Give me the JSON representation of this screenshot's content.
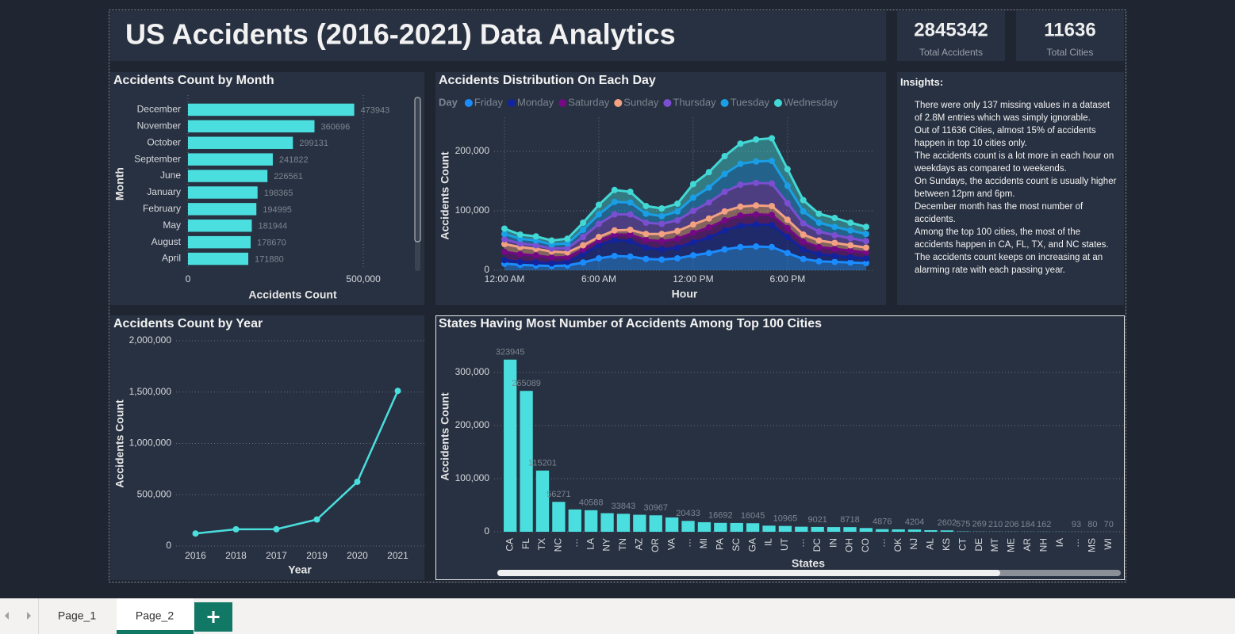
{
  "header": {
    "title": "US Accidents (2016-2021) Data Analytics"
  },
  "cards": [
    {
      "value": 2845342,
      "label": "Total Accidents"
    },
    {
      "value": 11636,
      "label": "Total Cities"
    }
  ],
  "insights": {
    "title": "Insights:",
    "items": [
      "There were only 137 missing values in a dataset of 2.8M entries which was simply ignorable.",
      "Out of 11636 Cities, almost 15% of accidents happen in top 10 cities only.",
      "The accidents count is a lot more in each hour on weekdays as compared to weekends.",
      "On Sundays, the accidents count is usually higher between 12pm and 6pm.",
      "December month has the most number of accidents.",
      "Among the top 100 cities, the most of the accidents happen in CA, FL, TX, and NC states.",
      "The accidents count keeps on increasing at an alarming rate with each passing year."
    ]
  },
  "chart_data": [
    {
      "type": "bar",
      "orientation": "horizontal",
      "title": "Accidents Count by Month",
      "x_label": "Accidents Count",
      "y_label": "Month",
      "categories": [
        "December",
        "November",
        "October",
        "September",
        "June",
        "January",
        "February",
        "May",
        "August",
        "April"
      ],
      "values": [
        473943,
        360696,
        299131,
        241822,
        226561,
        198365,
        194995,
        181944,
        178670,
        171880
      ],
      "color": "#4adede",
      "data_labels": true,
      "grid": true,
      "xlim": [
        0,
        640000
      ],
      "xticks": [
        0,
        {
          "value": 500000,
          "label": "500,000"
        }
      ]
    },
    {
      "type": "area",
      "stacked": true,
      "title": "Accidents Distribution On Each Day",
      "x_label": "Hour",
      "y_label": "Accidents Count",
      "legend_title": "Day",
      "x": [
        0,
        1,
        2,
        3,
        4,
        5,
        6,
        7,
        8,
        9,
        10,
        11,
        12,
        13,
        14,
        15,
        16,
        17,
        18,
        19,
        20,
        21,
        22,
        23
      ],
      "xlim": [
        0,
        23
      ],
      "xticks": [
        {
          "value": 0,
          "label": "12:00 AM"
        },
        {
          "value": 6,
          "label": "6:00 AM"
        },
        {
          "value": 12,
          "label": "12:00 PM"
        },
        {
          "value": 18,
          "label": "6:00 PM"
        }
      ],
      "ylim": [
        0,
        250000
      ],
      "yticks": [
        0,
        {
          "value": 100000,
          "label": "100,000"
        },
        {
          "value": 200000,
          "label": "200,000"
        }
      ],
      "grid": true,
      "series": [
        {
          "name": "Friday",
          "color": "#1a8cff",
          "values": [
            11000,
            9000,
            8000,
            7000,
            8000,
            13000,
            20000,
            24000,
            23000,
            19000,
            18000,
            20000,
            25000,
            29000,
            35000,
            39000,
            40000,
            39000,
            29000,
            19000,
            15000,
            14000,
            13000,
            12000
          ]
        },
        {
          "name": "Monday",
          "color": "#12239e",
          "values": [
            6000,
            5000,
            5000,
            4500,
            6000,
            14000,
            22000,
            27000,
            26000,
            19000,
            17000,
            18000,
            22000,
            26000,
            32000,
            36000,
            37000,
            37000,
            27000,
            16000,
            12000,
            10000,
            9000,
            8000
          ]
        },
        {
          "name": "Saturday",
          "color": "#750985",
          "values": [
            14000,
            13000,
            12000,
            10000,
            8000,
            8000,
            8000,
            9000,
            11000,
            13000,
            14000,
            15000,
            16000,
            17000,
            17000,
            17000,
            17000,
            17000,
            15000,
            13000,
            12000,
            12000,
            11000,
            10000
          ]
        },
        {
          "name": "Sunday",
          "color": "#f2a183",
          "values": [
            13000,
            12000,
            11000,
            10000,
            8000,
            7000,
            6000,
            7000,
            8000,
            10000,
            12000,
            13000,
            14000,
            15000,
            15000,
            15000,
            15000,
            15000,
            14000,
            12000,
            11000,
            10000,
            9000,
            8000
          ]
        },
        {
          "name": "Thursday",
          "color": "#7a4fd1",
          "values": [
            8000,
            6000,
            6000,
            5000,
            7000,
            14000,
            22000,
            27000,
            26000,
            19000,
            17000,
            18000,
            23000,
            27000,
            33000,
            37000,
            38000,
            38000,
            28000,
            19000,
            15000,
            13000,
            12000,
            11000
          ]
        },
        {
          "name": "Tuesday",
          "color": "#1a9fe6",
          "values": [
            9000,
            8000,
            8000,
            7000,
            8000,
            12000,
            16000,
            21000,
            20000,
            15000,
            13000,
            15000,
            22000,
            25000,
            30000,
            35000,
            36000,
            38000,
            29000,
            20000,
            15000,
            14000,
            13000,
            12000
          ]
        },
        {
          "name": "Wednesday",
          "color": "#41d8d5",
          "values": [
            9000,
            7000,
            7000,
            6500,
            8000,
            12000,
            16000,
            20000,
            18000,
            13000,
            13000,
            13000,
            23000,
            26000,
            30000,
            34000,
            37000,
            38000,
            28000,
            19000,
            15000,
            15000,
            13000,
            12000
          ]
        }
      ]
    },
    {
      "type": "line",
      "title": "Accidents Count by Year",
      "x_label": "Year",
      "y_label": "Accidents Count",
      "categories": [
        "2016",
        "2018",
        "2017",
        "2019",
        "2020",
        "2021"
      ],
      "values": [
        122024,
        163176,
        163918,
        258615,
        625864,
        1511745
      ],
      "color": "#4adede",
      "grid": true,
      "ylim": [
        0,
        2000000
      ],
      "yticks": [
        0,
        {
          "value": 500000,
          "label": "500,000"
        },
        {
          "value": 1000000,
          "label": "1,000,000"
        },
        {
          "value": 1500000,
          "label": "1,500,000"
        },
        {
          "value": 2000000,
          "label": "2,000,000"
        }
      ]
    },
    {
      "type": "bar",
      "title": "States Having Most Number of Accidents Among Top 100 Cities",
      "x_label": "States",
      "y_label": "Accidents Count",
      "categories": [
        "CA",
        "FL",
        "TX",
        "NC",
        "…",
        "LA",
        "NY",
        "TN",
        "AZ",
        "OR",
        "VA",
        "…",
        "MI",
        "PA",
        "SC",
        "GA",
        "IL",
        "UT",
        "…",
        "DC",
        "IN",
        "OH",
        "CO",
        "…",
        "OK",
        "NJ",
        "AL",
        "KS",
        "CT",
        "DE",
        "MT",
        "ME",
        "AR",
        "NH",
        "IA",
        "…",
        "MS",
        "WI"
      ],
      "values": [
        323945,
        265089,
        115201,
        56271,
        42000,
        40588,
        35000,
        33843,
        32000,
        30967,
        27000,
        20433,
        18000,
        16692,
        16500,
        16045,
        11500,
        10965,
        9500,
        9021,
        8800,
        8718,
        7000,
        4876,
        4500,
        4204,
        3000,
        2602,
        575,
        269,
        210,
        206,
        184,
        162,
        120,
        93,
        80,
        70
      ],
      "value_labels": [
        "323945",
        "265089",
        "115201",
        "56271",
        null,
        "40588",
        null,
        "33843",
        null,
        "30967",
        null,
        "20433",
        null,
        "16692",
        null,
        "16045",
        null,
        "10965",
        null,
        "9021",
        null,
        "8718",
        null,
        "4876",
        null,
        "4204",
        null,
        "2602",
        "575",
        "269",
        "210",
        "206",
        "184",
        "162",
        null,
        "93",
        "80",
        "70"
      ],
      "color": "#4adede",
      "grid": true,
      "ylim": [
        0,
        340000
      ],
      "yticks": [
        0,
        {
          "value": 100000,
          "label": "100,000"
        },
        {
          "value": 200000,
          "label": "200,000"
        },
        {
          "value": 300000,
          "label": "300,000"
        }
      ]
    }
  ],
  "tabs": [
    "Page_1",
    "Page_2"
  ]
}
